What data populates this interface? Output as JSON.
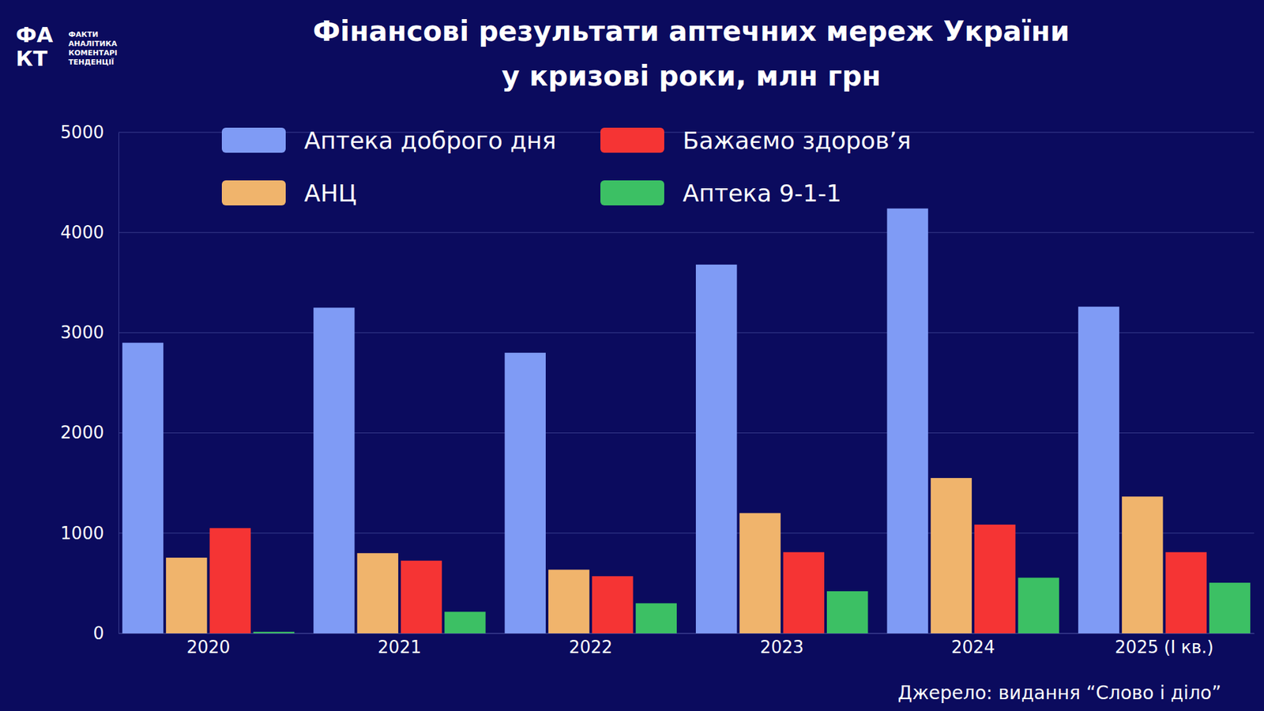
{
  "chart_data": {
    "type": "bar",
    "title": [
      "Фінансові результати аптечних мереж України",
      "у кризові роки, млн грн"
    ],
    "logo": [
      "ФА",
      "КТ"
    ],
    "logo_text": [
      "ФАКТИ",
      "АНАЛІТИКА",
      "КОМЕНТАРІ",
      "ТЕНДЕНЦІЇ"
    ],
    "source": "Джерело: видання “Слово і діло”",
    "categories": [
      "2020",
      "2021",
      "2022",
      "2023",
      "2024",
      "2025 (І кв.)"
    ],
    "series": [
      {
        "name": "Аптека доброго дня",
        "color": "#7f9bf5",
        "values": [
          2900,
          3250,
          2800,
          3680,
          4240,
          3260
        ]
      },
      {
        "name": "АНЦ",
        "color": "#f0b46c",
        "values": [
          755,
          800,
          635,
          1200,
          1550,
          1365
        ]
      },
      {
        "name": "Бажаємо здоров’я",
        "color": "#f53434",
        "values": [
          1050,
          725,
          570,
          810,
          1085,
          810
        ]
      },
      {
        "name": "Аптека 9-1-1",
        "color": "#3cc064",
        "values": [
          15,
          215,
          300,
          420,
          555,
          505
        ]
      }
    ],
    "ylim": [
      0,
      5000
    ],
    "yticks": [
      0,
      1000,
      2000,
      3000,
      4000,
      5000
    ],
    "grid": true,
    "legend": "top"
  }
}
